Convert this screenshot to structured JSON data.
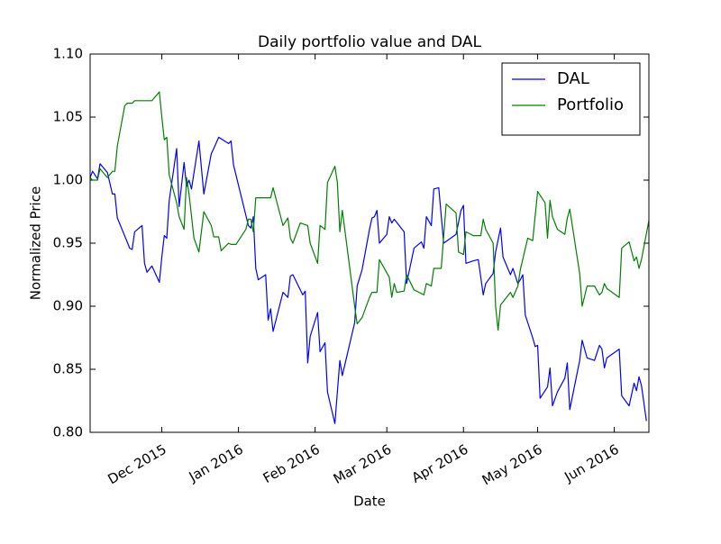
{
  "chart_data": {
    "type": "line",
    "title": "Daily portfolio value and DAL",
    "xlabel": "Date",
    "ylabel": "Normalized Price",
    "xlim": [
      "2015-11-02",
      "2016-06-15"
    ],
    "xticks": [
      {
        "value": "2015-12-01",
        "label": "Dec 2015"
      },
      {
        "value": "2016-01-01",
        "label": "Jan 2016"
      },
      {
        "value": "2016-02-01",
        "label": "Feb 2016"
      },
      {
        "value": "2016-03-01",
        "label": "Mar 2016"
      },
      {
        "value": "2016-04-01",
        "label": "Apr 2016"
      },
      {
        "value": "2016-05-01",
        "label": "May 2016"
      },
      {
        "value": "2016-06-01",
        "label": "Jun 2016"
      }
    ],
    "ylim": [
      0.8,
      1.1
    ],
    "yticks": [
      {
        "value": 0.8,
        "label": "0.80"
      },
      0.85,
      {
        "value": 0.9,
        "label": "0.90"
      },
      0.95,
      {
        "value": 1.0,
        "label": "1.00"
      },
      1.05,
      {
        "value": 1.1,
        "label": "1.10"
      }
    ],
    "grid": false,
    "legend": "upper right",
    "series": [
      {
        "name": "DAL",
        "color": "#0000ff",
        "x": [
          "2015-11-02",
          "2015-11-03",
          "2015-11-05",
          "2015-11-06",
          "2015-11-09",
          "2015-11-11",
          "2015-11-12",
          "2015-11-13",
          "2015-11-17",
          "2015-11-18",
          "2015-11-19",
          "2015-11-20",
          "2015-11-23",
          "2015-11-24",
          "2015-11-25",
          "2015-11-27",
          "2015-11-30",
          "2015-12-01",
          "2015-12-02",
          "2015-12-03",
          "2015-12-04",
          "2015-12-07",
          "2015-12-08",
          "2015-12-10",
          "2015-12-11",
          "2015-12-12",
          "2015-12-13",
          "2015-12-16",
          "2015-12-18",
          "2015-12-21",
          "2015-12-22",
          "2015-12-24",
          "2015-12-28",
          "2015-12-29",
          "2015-12-30",
          "2016-01-05",
          "2016-01-06",
          "2016-01-07",
          "2016-01-08",
          "2016-01-09",
          "2016-01-12",
          "2016-01-13",
          "2016-01-14",
          "2016-01-15",
          "2016-01-19",
          "2016-01-21",
          "2016-01-22",
          "2016-01-23",
          "2016-01-27",
          "2016-01-28",
          "2016-01-29",
          "2016-01-30",
          "2016-02-02",
          "2016-02-03",
          "2016-02-05",
          "2016-02-06",
          "2016-02-09",
          "2016-02-11",
          "2016-02-12",
          "2016-02-17",
          "2016-02-18",
          "2016-02-20",
          "2016-02-23",
          "2016-02-24",
          "2016-02-25",
          "2016-02-26",
          "2016-02-27",
          "2016-03-01",
          "2016-03-02",
          "2016-03-03",
          "2016-03-04",
          "2016-03-08",
          "2016-03-09",
          "2016-03-12",
          "2016-03-15",
          "2016-03-16",
          "2016-03-17",
          "2016-03-19",
          "2016-03-20",
          "2016-03-22",
          "2016-03-24",
          "2016-03-29",
          "2016-03-31",
          "2016-04-01",
          "2016-04-02",
          "2016-04-05",
          "2016-04-07",
          "2016-04-09",
          "2016-04-10",
          "2016-04-13",
          "2016-04-14",
          "2016-04-16",
          "2016-04-17",
          "2016-04-20",
          "2016-04-21",
          "2016-04-23",
          "2016-04-24",
          "2016-04-25",
          "2016-04-26",
          "2016-04-29",
          "2016-04-30",
          "2016-05-01",
          "2016-05-02",
          "2016-05-05",
          "2016-05-06",
          "2016-05-07",
          "2016-05-09",
          "2016-05-12",
          "2016-05-13",
          "2016-05-14",
          "2016-05-18",
          "2016-05-19",
          "2016-05-21",
          "2016-05-24",
          "2016-05-26",
          "2016-05-27",
          "2016-05-28",
          "2016-05-29",
          "2016-06-03",
          "2016-06-04",
          "2016-06-07",
          "2016-06-09",
          "2016-06-10",
          "2016-06-11",
          "2016-06-12",
          "2016-06-14"
        ],
        "values": [
          1.002,
          1.007,
          1.001,
          1.013,
          1.006,
          0.989,
          0.989,
          0.97,
          0.951,
          0.946,
          0.945,
          0.959,
          0.964,
          0.934,
          0.927,
          0.932,
          0.919,
          0.939,
          0.956,
          0.954,
          0.984,
          1.025,
          0.979,
          1.014,
          0.995,
          1.0,
          0.993,
          1.031,
          0.989,
          1.021,
          1.025,
          1.034,
          1.029,
          1.031,
          1.012,
          0.964,
          0.962,
          0.971,
          0.93,
          0.921,
          0.925,
          0.889,
          0.898,
          0.88,
          0.911,
          0.907,
          0.924,
          0.925,
          0.909,
          0.912,
          0.855,
          0.876,
          0.895,
          0.864,
          0.871,
          0.832,
          0.807,
          0.857,
          0.845,
          0.887,
          0.916,
          0.929,
          0.961,
          0.97,
          0.971,
          0.976,
          0.95,
          0.957,
          0.971,
          0.966,
          0.969,
          0.959,
          0.918,
          0.946,
          0.951,
          0.946,
          0.971,
          0.964,
          0.993,
          0.994,
          0.95,
          0.957,
          0.976,
          0.98,
          0.934,
          0.936,
          0.937,
          0.909,
          0.918,
          0.926,
          0.943,
          0.962,
          0.939,
          0.925,
          0.93,
          0.918,
          0.921,
          0.925,
          0.893,
          0.875,
          0.868,
          0.869,
          0.827,
          0.836,
          0.851,
          0.821,
          0.832,
          0.843,
          0.855,
          0.818,
          0.857,
          0.873,
          0.859,
          0.857,
          0.869,
          0.866,
          0.851,
          0.859,
          0.866,
          0.829,
          0.821,
          0.839,
          0.833,
          0.844,
          0.837,
          0.809
        ]
      },
      {
        "name": "Portfolio",
        "color": "#008000",
        "x": [
          "2015-11-02",
          "2015-11-03",
          "2015-11-05",
          "2015-11-06",
          "2015-11-09",
          "2015-11-11",
          "2015-11-12",
          "2015-11-13",
          "2015-11-16",
          "2015-11-17",
          "2015-11-19",
          "2015-11-20",
          "2015-11-27",
          "2015-11-30",
          "2015-12-01",
          "2015-12-02",
          "2015-12-03",
          "2015-12-04",
          "2015-12-07",
          "2015-12-08",
          "2015-12-10",
          "2015-12-11",
          "2015-12-12",
          "2015-12-14",
          "2015-12-16",
          "2015-12-18",
          "2015-12-21",
          "2015-12-22",
          "2015-12-24",
          "2015-12-25",
          "2015-12-28",
          "2015-12-29",
          "2015-12-31",
          "2016-01-04",
          "2016-01-05",
          "2016-01-06",
          "2016-01-07",
          "2016-01-08",
          "2016-01-14",
          "2016-01-15",
          "2016-01-19",
          "2016-01-21",
          "2016-01-22",
          "2016-01-23",
          "2016-01-26",
          "2016-01-29",
          "2016-01-30",
          "2016-02-02",
          "2016-02-03",
          "2016-02-05",
          "2016-02-06",
          "2016-02-09",
          "2016-02-10",
          "2016-02-11",
          "2016-02-12",
          "2016-02-17",
          "2016-02-18",
          "2016-02-20",
          "2016-02-23",
          "2016-02-24",
          "2016-02-26",
          "2016-02-27",
          "2016-03-02",
          "2016-03-03",
          "2016-03-04",
          "2016-03-05",
          "2016-03-08",
          "2016-03-09",
          "2016-03-12",
          "2016-03-16",
          "2016-03-17",
          "2016-03-19",
          "2016-03-20",
          "2016-03-23",
          "2016-03-25",
          "2016-03-29",
          "2016-03-30",
          "2016-04-01",
          "2016-04-02",
          "2016-04-05",
          "2016-04-08",
          "2016-04-09",
          "2016-04-10",
          "2016-04-13",
          "2016-04-14",
          "2016-04-15",
          "2016-04-16",
          "2016-04-20",
          "2016-04-21",
          "2016-04-23",
          "2016-04-24",
          "2016-04-27",
          "2016-04-29",
          "2016-05-01",
          "2016-05-04",
          "2016-05-05",
          "2016-05-06",
          "2016-05-07",
          "2016-05-09",
          "2016-05-12",
          "2016-05-13",
          "2016-05-14",
          "2016-05-18",
          "2016-05-19",
          "2016-05-21",
          "2016-05-24",
          "2016-05-26",
          "2016-05-27",
          "2016-05-28",
          "2016-05-29",
          "2016-06-03",
          "2016-06-04",
          "2016-06-07",
          "2016-06-09",
          "2016-06-10",
          "2016-06-11",
          "2016-06-12",
          "2016-06-15"
        ],
        "values": [
          1.002,
          1.0,
          1.0,
          1.009,
          1.002,
          1.007,
          1.007,
          1.027,
          1.059,
          1.061,
          1.061,
          1.063,
          1.063,
          1.07,
          1.05,
          1.032,
          1.034,
          1.004,
          0.982,
          0.971,
          0.961,
          1.002,
          0.989,
          0.954,
          0.943,
          0.975,
          0.964,
          0.955,
          0.955,
          0.944,
          0.95,
          0.949,
          0.949,
          0.961,
          0.969,
          0.969,
          0.959,
          0.986,
          0.986,
          0.994,
          0.964,
          0.97,
          0.954,
          0.95,
          0.966,
          0.964,
          0.95,
          0.934,
          0.964,
          0.961,
          0.998,
          1.011,
          0.998,
          0.959,
          0.976,
          0.9,
          0.886,
          0.891,
          0.907,
          0.911,
          0.911,
          0.937,
          0.923,
          0.907,
          0.918,
          0.911,
          0.912,
          0.925,
          0.913,
          0.909,
          0.918,
          0.916,
          0.93,
          0.93,
          0.981,
          0.974,
          0.943,
          0.941,
          0.959,
          0.956,
          0.956,
          0.969,
          0.961,
          0.95,
          0.9,
          0.881,
          0.901,
          0.911,
          0.907,
          0.916,
          0.929,
          0.954,
          0.952,
          0.991,
          0.982,
          0.954,
          0.984,
          0.971,
          0.961,
          0.957,
          0.97,
          0.977,
          0.926,
          0.9,
          0.916,
          0.916,
          0.909,
          0.911,
          0.918,
          0.914,
          0.907,
          0.946,
          0.951,
          0.936,
          0.939,
          0.93,
          0.937,
          0.968
        ]
      }
    ]
  }
}
